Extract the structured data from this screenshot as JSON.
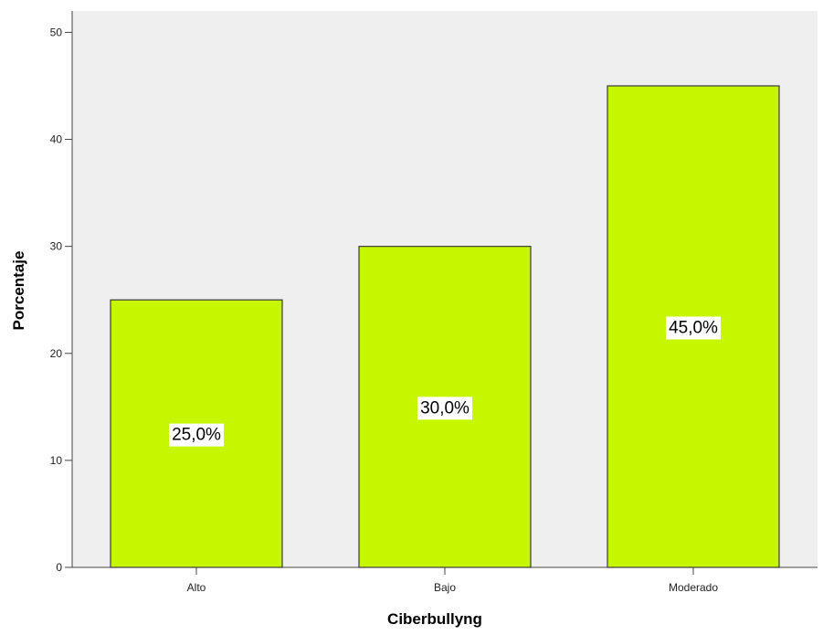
{
  "chart_data": {
    "type": "bar",
    "categories": [
      "Alto",
      "Bajo",
      "Moderado"
    ],
    "values": [
      25.0,
      30.0,
      45.0
    ],
    "data_labels": [
      "25,0%",
      "30,0%",
      "45,0%"
    ],
    "xlabel": "Ciberbullyng",
    "ylabel": "Porcentaje",
    "ylim": [
      0,
      52
    ],
    "yticks": [
      0,
      10,
      20,
      30,
      40,
      50
    ],
    "ytick_labels": [
      "0",
      "10",
      "20",
      "30",
      "40",
      "50"
    ],
    "grid": false,
    "legend": "none"
  },
  "colors": {
    "bar_fill": "#c6f700",
    "bar_stroke": "#3a3a3a",
    "plot_background": "#efefef",
    "label_box": "#ffffff"
  }
}
